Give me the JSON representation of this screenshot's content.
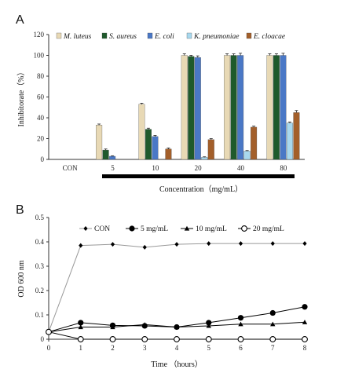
{
  "panels": {
    "a": "A",
    "b": "B"
  },
  "chart_data": [
    {
      "type": "bar",
      "ylabel": "Inhibitorate（%）",
      "xlabel": "Concentration（mg/mL）",
      "ylim": [
        0,
        120
      ],
      "yticks": [
        0,
        20,
        40,
        60,
        80,
        100,
        120
      ],
      "categories": [
        "CON",
        "5",
        "10",
        "20",
        "40",
        "80"
      ],
      "legend_position": "top",
      "series": [
        {
          "name": "M. luteus",
          "values": [
            0,
            33,
            53,
            100,
            100,
            100
          ],
          "errors": [
            0,
            1,
            1,
            1.5,
            1.5,
            1.5
          ],
          "color": "#e8d9b5"
        },
        {
          "name": "S. aureus",
          "values": [
            0,
            9,
            29,
            99,
            100,
            100
          ],
          "errors": [
            0,
            1,
            1,
            1,
            1.5,
            1.5
          ],
          "color": "#1f5a2c"
        },
        {
          "name": "E. coli",
          "values": [
            0,
            3,
            22,
            98,
            100,
            100
          ],
          "errors": [
            0,
            0.5,
            1,
            1.5,
            2,
            2
          ],
          "color": "#4a78c6"
        },
        {
          "name": "K. pneumoniae",
          "values": [
            0,
            0,
            0,
            2,
            8,
            35
          ],
          "errors": [
            0,
            0,
            0,
            0.5,
            0.5,
            1
          ],
          "color": "#a8d8ee"
        },
        {
          "name": "E. cloacae",
          "values": [
            0,
            0,
            10,
            19,
            31,
            45
          ],
          "errors": [
            0,
            0,
            1,
            1,
            1,
            2
          ],
          "color": "#a35f2a"
        }
      ]
    },
    {
      "type": "line",
      "ylabel": "OD 600 nm",
      "xlabel": "Time （hours）",
      "xlim": [
        0,
        8
      ],
      "ylim": [
        0,
        0.5
      ],
      "xticks": [
        0,
        1,
        2,
        3,
        4,
        5,
        6,
        7,
        8
      ],
      "yticks": [
        0,
        0.1,
        0.2,
        0.3,
        0.4,
        0.5
      ],
      "x": [
        0,
        1,
        2,
        3,
        4,
        5,
        6,
        7,
        8
      ],
      "legend_position": "top",
      "series": [
        {
          "name": "CON",
          "marker": "diamond",
          "values": [
            0.03,
            0.385,
            0.39,
            0.378,
            0.39,
            0.393,
            0.393,
            0.393,
            0.393
          ]
        },
        {
          "name": "5 mg/mL",
          "marker": "circle-filled",
          "values": [
            0.03,
            0.068,
            0.057,
            0.055,
            0.05,
            0.068,
            0.088,
            0.108,
            0.133
          ]
        },
        {
          "name": "10 mg/mL",
          "marker": "triangle",
          "values": [
            0.03,
            0.05,
            0.05,
            0.06,
            0.05,
            0.055,
            0.062,
            0.062,
            0.07
          ]
        },
        {
          "name": "20 mg/mL",
          "marker": "circle-open",
          "values": [
            0.03,
            0.0,
            0.0,
            0.0,
            0.0,
            0.0,
            0.0,
            0.0,
            0.0
          ]
        }
      ]
    }
  ]
}
